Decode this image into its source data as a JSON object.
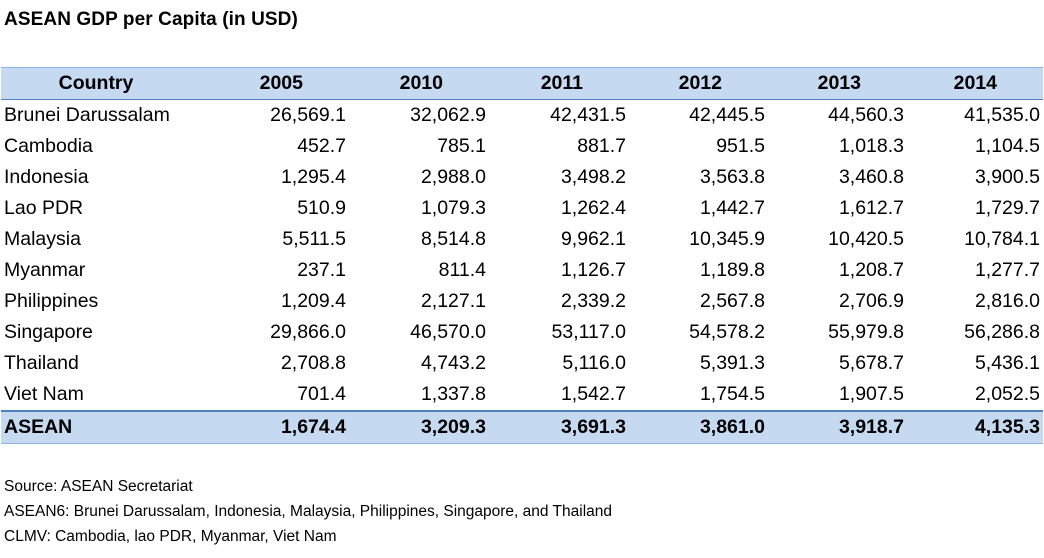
{
  "title": "ASEAN GDP per Capita (in USD)",
  "chart_data": {
    "type": "table",
    "title": "ASEAN GDP per Capita (in USD)",
    "columns": [
      "Country",
      "2005",
      "2010",
      "2011",
      "2012",
      "2013",
      "2014"
    ],
    "rows": [
      {
        "country": "Brunei Darussalam",
        "values": [
          "26,569.1",
          "32,062.9",
          "42,431.5",
          "42,445.5",
          "44,560.3",
          "41,535.0"
        ]
      },
      {
        "country": "Cambodia",
        "values": [
          "452.7",
          "785.1",
          "881.7",
          "951.5",
          "1,018.3",
          "1,104.5"
        ]
      },
      {
        "country": "Indonesia",
        "values": [
          "1,295.4",
          "2,988.0",
          "3,498.2",
          "3,563.8",
          "3,460.8",
          "3,900.5"
        ]
      },
      {
        "country": "Lao PDR",
        "values": [
          "510.9",
          "1,079.3",
          "1,262.4",
          "1,442.7",
          "1,612.7",
          "1,729.7"
        ]
      },
      {
        "country": "Malaysia",
        "values": [
          "5,511.5",
          "8,514.8",
          "9,962.1",
          "10,345.9",
          "10,420.5",
          "10,784.1"
        ]
      },
      {
        "country": "Myanmar",
        "values": [
          "237.1",
          "811.4",
          "1,126.7",
          "1,189.8",
          "1,208.7",
          "1,277.7"
        ]
      },
      {
        "country": "Philippines",
        "values": [
          "1,209.4",
          "2,127.1",
          "2,339.2",
          "2,567.8",
          "2,706.9",
          "2,816.0"
        ]
      },
      {
        "country": "Singapore",
        "values": [
          "29,866.0",
          "46,570.0",
          "53,117.0",
          "54,578.2",
          "55,979.8",
          "56,286.8"
        ]
      },
      {
        "country": "Thailand",
        "values": [
          "2,708.8",
          "4,743.2",
          "5,116.0",
          "5,391.3",
          "5,678.7",
          "5,436.1"
        ]
      },
      {
        "country": "Viet Nam",
        "values": [
          "701.4",
          "1,337.8",
          "1,542.7",
          "1,754.5",
          "1,907.5",
          "2,052.5"
        ]
      }
    ],
    "total": {
      "country": "ASEAN",
      "values": [
        "1,674.4",
        "3,209.3",
        "3,691.3",
        "3,861.0",
        "3,918.7",
        "4,135.3"
      ]
    }
  },
  "notes": [
    "Source: ASEAN Secretariat",
    "ASEAN6: Brunei Darussalam, Indonesia, Malaysia, Philippines, Singapore, and Thailand",
    "CLMV: Cambodia, lao PDR, Myanmar, Viet Nam"
  ],
  "colors": {
    "header_fill": "#c5d9f1",
    "border": "#4f81bd"
  }
}
